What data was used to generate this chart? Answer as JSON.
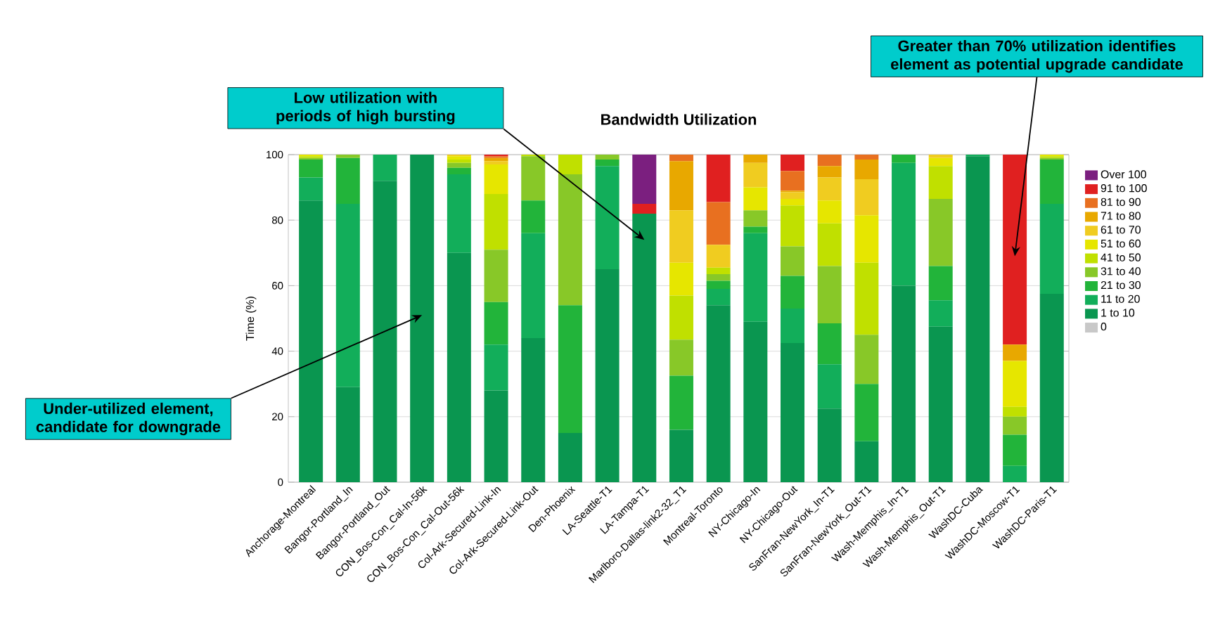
{
  "chart_data": {
    "type": "bar",
    "stacked": true,
    "title": "Bandwidth Utilization",
    "ylabel": "Time (%)",
    "categories": [
      "Anchorage-Montreal",
      "Bangor-Portland_In",
      "Bangor-Portland_Out",
      "CON_Bos-Con_Cal-In-56k",
      "CON_Bos-Con_Cal-Out-56k",
      "Col-Ark-Secured-Link-In",
      "Col-Ark-Secured-Link-Out",
      "Den-Phoenix",
      "LA-Seattle-T1",
      "LA-Tampa-T1",
      "Marlboro-Dallas-link2-32_T1",
      "Montreal-Toronto",
      "NY-Chicago-In",
      "NY-Chicago-Out",
      "SanFran-NewYork_In-T1",
      "SanFran-NewYork_Out-T1",
      "Wash-Memphis_In-T1",
      "Wash-Memphis_Out-T1",
      "WashDC-Cuba",
      "WashDC-Moscow-T1",
      "WashDC-Paris-T1"
    ],
    "series": [
      {
        "name": "0",
        "color": "#c8c8c8",
        "values": [
          0,
          0,
          0,
          0,
          0,
          0,
          0,
          0,
          0,
          0,
          0,
          0,
          0,
          0,
          0,
          0,
          0,
          0,
          0,
          0,
          0
        ]
      },
      {
        "name": "1 to 10",
        "color": "#0a9650",
        "values": [
          86,
          29,
          92,
          100,
          70,
          28,
          44,
          15,
          65,
          82,
          16,
          54,
          49,
          42.5,
          22.5,
          12.5,
          60,
          47.5,
          99.5,
          0,
          57.5
        ]
      },
      {
        "name": "11 to 20",
        "color": "#12ae5a",
        "values": [
          7,
          56,
          8,
          0,
          24,
          14,
          32,
          0,
          31.5,
          0,
          0,
          5,
          27,
          10.5,
          13.5,
          0,
          37.5,
          8,
          0.5,
          5,
          27.5
        ]
      },
      {
        "name": "21 to 30",
        "color": "#22b43a",
        "values": [
          5.5,
          14,
          0,
          0,
          2,
          13,
          10,
          39,
          2,
          0,
          16.5,
          2.5,
          2,
          10,
          12.5,
          17.5,
          2.5,
          10.5,
          0,
          9.5,
          13.5
        ]
      },
      {
        "name": "31 to 40",
        "color": "#88c828",
        "values": [
          0.5,
          1,
          0,
          0,
          1.5,
          16,
          13.5,
          40,
          1.5,
          0,
          11,
          2,
          5,
          9,
          17.5,
          15,
          0,
          20.5,
          0,
          5.5,
          0.5
        ]
      },
      {
        "name": "41 to 50",
        "color": "#c0e000",
        "values": [
          0.5,
          0,
          0,
          0,
          1,
          17,
          0.5,
          6,
          0,
          0,
          13.5,
          2,
          0,
          12.5,
          13,
          22,
          0,
          10,
          0,
          3,
          0.5
        ]
      },
      {
        "name": "51 to 60",
        "color": "#e6e600",
        "values": [
          0.5,
          0,
          0,
          0,
          1,
          9,
          0,
          0,
          0,
          0,
          10,
          0,
          7,
          2,
          7,
          14.5,
          0,
          2.5,
          0,
          14,
          0.5
        ]
      },
      {
        "name": "61 to 70",
        "color": "#f0cc20",
        "values": [
          0,
          0,
          0,
          0,
          0.5,
          1,
          0,
          0,
          0,
          0,
          16,
          7,
          7.5,
          2,
          7,
          11,
          0,
          1,
          0,
          0,
          0
        ]
      },
      {
        "name": "71 to 80",
        "color": "#e8a800",
        "values": [
          0,
          0,
          0,
          0,
          0,
          1,
          0,
          0,
          0,
          0,
          15,
          0,
          2.5,
          0.5,
          3.5,
          6,
          0,
          0,
          0,
          5,
          0
        ]
      },
      {
        "name": "81 to 90",
        "color": "#e87020",
        "values": [
          0,
          0,
          0,
          0,
          0,
          0.5,
          0,
          0,
          0,
          0,
          2,
          13,
          0,
          6,
          3.5,
          1.5,
          0,
          0,
          0,
          0,
          0
        ]
      },
      {
        "name": "91 to 100",
        "color": "#e02020",
        "values": [
          0,
          0,
          0,
          0,
          0,
          0.5,
          0,
          0,
          0,
          3,
          0,
          14.5,
          0,
          5,
          0,
          0,
          0,
          0,
          0,
          58,
          0
        ]
      },
      {
        "name": "Over 100",
        "color": "#7b1f7f",
        "values": [
          0,
          0,
          0,
          0,
          0,
          0,
          0,
          0,
          0,
          15,
          0,
          0,
          0,
          0,
          0,
          0,
          0,
          0,
          0,
          0,
          0
        ]
      }
    ],
    "ylim": [
      0,
      100
    ],
    "yticks": [
      0,
      20,
      40,
      60,
      80,
      100
    ],
    "grid": "y",
    "legend": "right",
    "annotations": [
      "Under-utilized element, candidate for downgrade",
      "Low utilization with periods of high bursting",
      "Greater than 70% utilization identifies element as potential upgrade candidate"
    ]
  }
}
